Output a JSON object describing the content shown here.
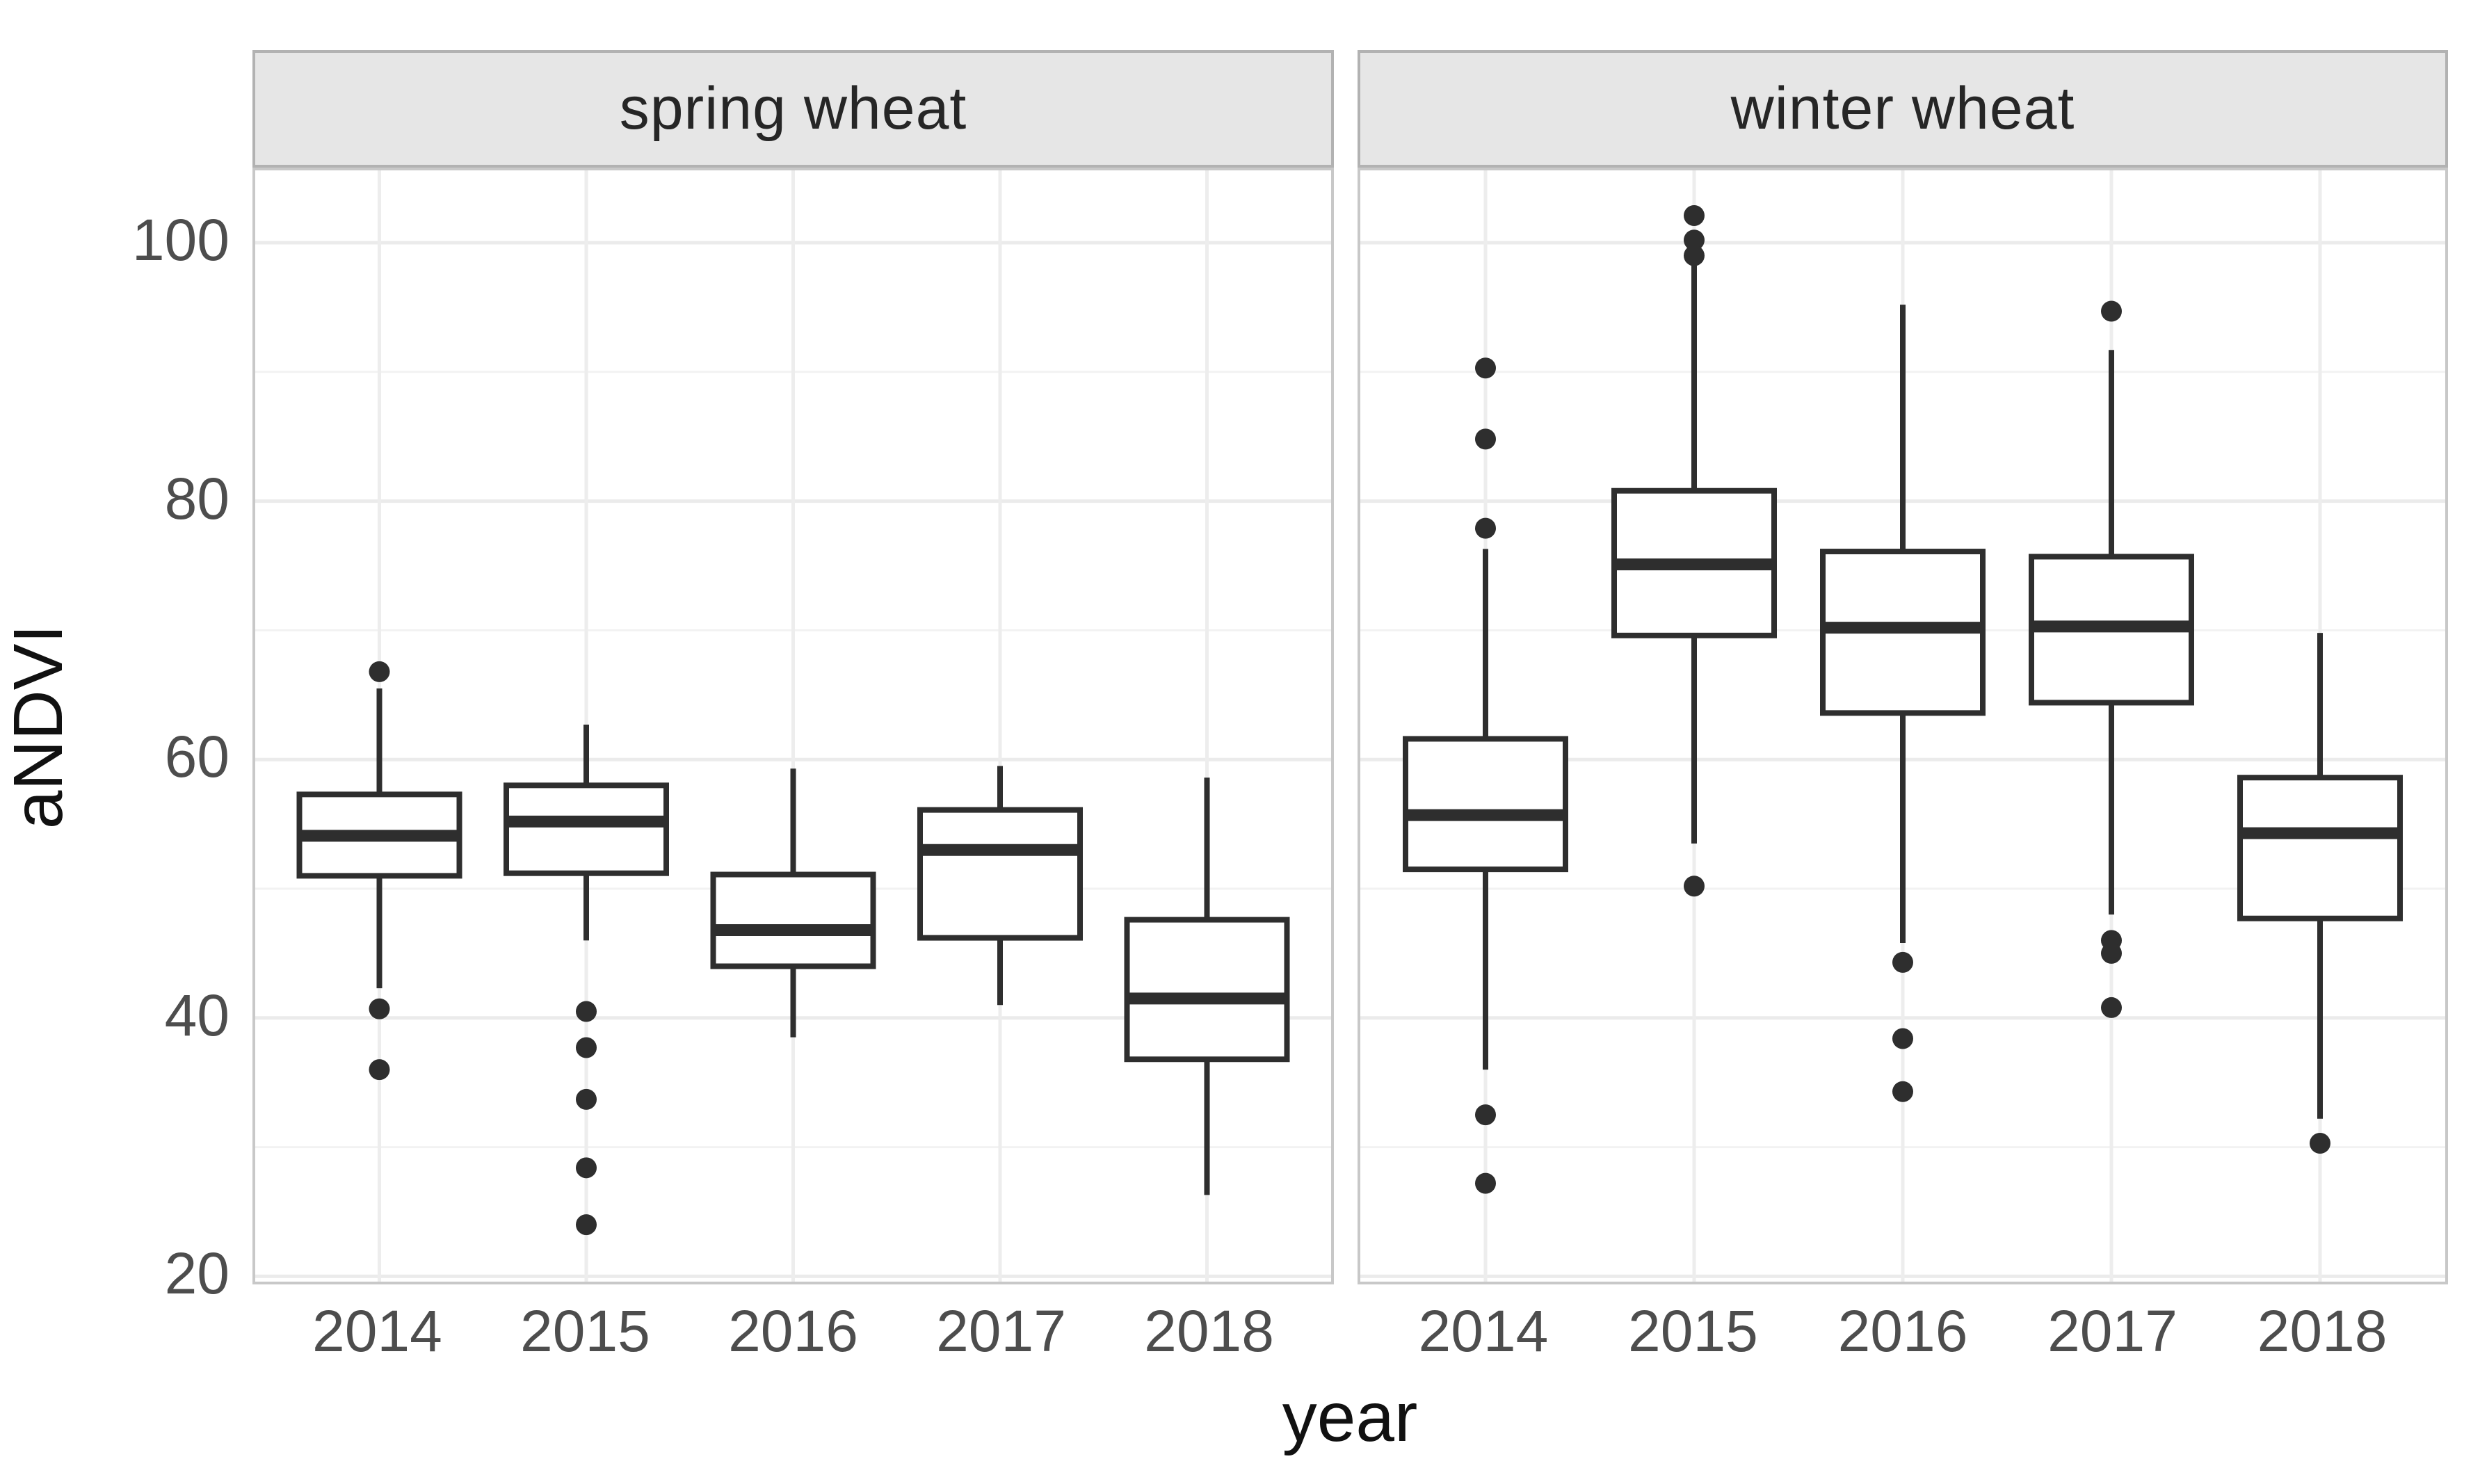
{
  "colors": {
    "background": "#ffffff",
    "box_stroke": "#2e2e2e",
    "box_fill": "#ffffff",
    "outlier_fill": "#2e2e2e",
    "grid_major": "#ebebeb",
    "grid_minor": "#f2f2f2",
    "grid_vertical": "#ededed",
    "panel_border": "#c8c8c8",
    "strip_fill": "#e6e6e6",
    "strip_border": "#b2b2b2",
    "tick_label": "#4d4d4d",
    "axis_title": "#111111"
  },
  "chart_data": {
    "type": "boxplot",
    "xlabel": "year",
    "ylabel": "aNDVI",
    "categories": [
      "2014",
      "2015",
      "2016",
      "2017",
      "2018"
    ],
    "yticks": [
      20,
      40,
      60,
      80,
      100
    ],
    "minor_gridlines": [
      30,
      50,
      70,
      90
    ],
    "ylim": [
      19.4,
      105.9
    ],
    "grid": "on",
    "legend": "none",
    "facets": [
      {
        "label": "spring wheat",
        "boxes": [
          {
            "year": "2014",
            "whisker_low": 42.3,
            "q1": 51.0,
            "median": 54.1,
            "q3": 57.3,
            "whisker_high": 65.5,
            "outliers": [
              66.8,
              40.7,
              36.0
            ]
          },
          {
            "year": "2015",
            "whisker_low": 46.0,
            "q1": 51.2,
            "median": 55.2,
            "q3": 58.0,
            "whisker_high": 62.7,
            "outliers": [
              40.5,
              37.7,
              33.7,
              28.4,
              24.0
            ]
          },
          {
            "year": "2016",
            "whisker_low": 38.5,
            "q1": 44.0,
            "median": 46.8,
            "q3": 51.1,
            "whisker_high": 59.3,
            "outliers": []
          },
          {
            "year": "2017",
            "whisker_low": 41.0,
            "q1": 46.2,
            "median": 53.0,
            "q3": 56.1,
            "whisker_high": 59.5,
            "outliers": []
          },
          {
            "year": "2018",
            "whisker_low": 26.3,
            "q1": 36.8,
            "median": 41.5,
            "q3": 47.6,
            "whisker_high": 58.6,
            "outliers": []
          }
        ]
      },
      {
        "label": "winter wheat",
        "boxes": [
          {
            "year": "2014",
            "whisker_low": 36.0,
            "q1": 51.5,
            "median": 55.7,
            "q3": 61.6,
            "whisker_high": 76.3,
            "outliers": [
              90.3,
              84.8,
              77.9,
              32.5,
              27.2
            ]
          },
          {
            "year": "2015",
            "whisker_low": 53.5,
            "q1": 69.6,
            "median": 75.1,
            "q3": 80.8,
            "whisker_high": 98.3,
            "outliers": [
              102.1,
              100.2,
              99.0,
              50.2
            ]
          },
          {
            "year": "2016",
            "whisker_low": 45.8,
            "q1": 63.6,
            "median": 70.2,
            "q3": 76.1,
            "whisker_high": 95.2,
            "outliers": [
              44.3,
              38.4,
              34.3
            ]
          },
          {
            "year": "2017",
            "whisker_low": 48.0,
            "q1": 64.4,
            "median": 70.3,
            "q3": 75.7,
            "whisker_high": 91.7,
            "outliers": [
              94.7,
              46.0,
              45.0,
              40.8
            ]
          },
          {
            "year": "2018",
            "whisker_low": 32.2,
            "q1": 47.7,
            "median": 54.3,
            "q3": 58.6,
            "whisker_high": 69.8,
            "outliers": [
              30.3
            ]
          }
        ]
      }
    ]
  }
}
